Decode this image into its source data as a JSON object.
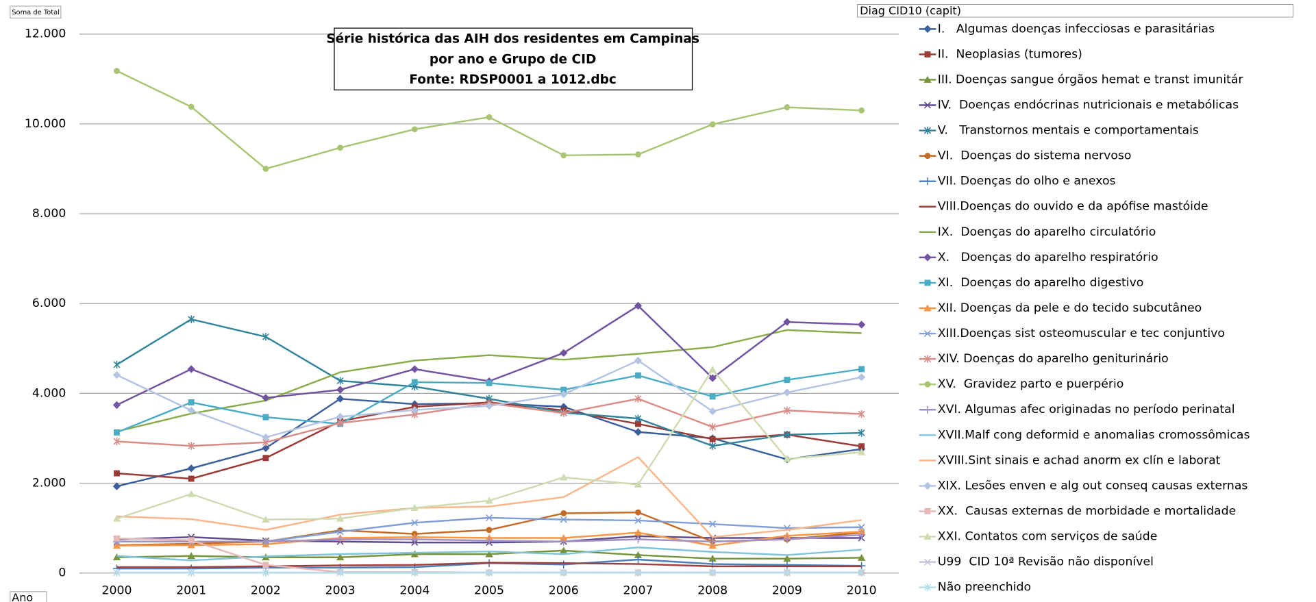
{
  "chart_data": {
    "type": "line",
    "title": [
      "Série histórica das AIH dos residentes em Campinas",
      "por ano e Grupo de CID",
      "Fonte: RDSP0001 a 1012.dbc"
    ],
    "value_field": "Soma de Total",
    "legend_title": "Diag CID10 (capit)",
    "x_field": "Ano",
    "legend": "right",
    "grid": true,
    "categories": [
      "2000",
      "2001",
      "2002",
      "2003",
      "2004",
      "2005",
      "2006",
      "2007",
      "2008",
      "2009",
      "2010"
    ],
    "ylim": [
      0,
      12000
    ],
    "yticks": [
      0,
      {
        "value": 2000,
        "label": "2.000"
      },
      {
        "value": 4000,
        "label": "4.000"
      },
      {
        "value": 6000,
        "label": "6.000"
      },
      {
        "value": 8000,
        "label": "8.000"
      },
      {
        "value": 10000,
        "label": "10.000"
      },
      {
        "value": 12000,
        "label": "12.000"
      }
    ],
    "series": [
      {
        "name": "I.   Algumas doenças infecciosas e parasitárias",
        "color": "#3a5f9a",
        "marker": "diamond",
        "values": [
          1930,
          2330,
          2780,
          3880,
          3760,
          3780,
          3700,
          3140,
          3000,
          2530,
          2760
        ]
      },
      {
        "name": "II.  Neoplasias (tumores)",
        "color": "#9c3a35",
        "marker": "square",
        "values": [
          2220,
          2100,
          2560,
          3380,
          3700,
          3800,
          3620,
          3320,
          2980,
          3080,
          2820
        ]
      },
      {
        "name": "III. Doenças sangue órgãos hemat e transt imunitár",
        "color": "#77933c",
        "marker": "triangle",
        "values": [
          350,
          380,
          350,
          350,
          420,
          420,
          500,
          400,
          320,
          320,
          340
        ]
      },
      {
        "name": "IV.  Doenças endócrinas nutricionais e metabólicas",
        "color": "#5f4b8b",
        "marker": "x",
        "values": [
          750,
          800,
          720,
          700,
          680,
          680,
          700,
          820,
          780,
          780,
          780
        ]
      },
      {
        "name": "V.   Transtornos mentais e comportamentais",
        "color": "#31849b",
        "marker": "asterisk",
        "values": [
          4640,
          5650,
          5260,
          4280,
          4150,
          3880,
          3570,
          3440,
          2830,
          3080,
          3120
        ]
      },
      {
        "name": "VI.  Doenças do sistema nervoso",
        "color": "#c46b27",
        "marker": "circle",
        "values": [
          620,
          650,
          700,
          950,
          870,
          960,
          1330,
          1350,
          700,
          750,
          900
        ]
      },
      {
        "name": "VII. Doenças do olho e anexos",
        "color": "#4a7ebb",
        "marker": "plus",
        "values": [
          100,
          100,
          120,
          120,
          130,
          220,
          190,
          300,
          200,
          180,
          160
        ]
      },
      {
        "name": "VIII.Doenças do ouvido e da apófise mastóide",
        "color": "#a0403d",
        "marker": "none",
        "values": [
          130,
          130,
          150,
          170,
          180,
          230,
          220,
          200,
          150,
          150,
          150
        ]
      },
      {
        "name": "IX.  Doenças do aparelho circulatório",
        "color": "#8aac4a",
        "marker": "none",
        "values": [
          3150,
          3550,
          3840,
          4470,
          4730,
          4850,
          4750,
          4880,
          5030,
          5410,
          5340
        ]
      },
      {
        "name": "X.   Doenças do aparelho respiratório",
        "color": "#7153a0",
        "marker": "diamond",
        "values": [
          3740,
          4540,
          3900,
          4080,
          4540,
          4270,
          4900,
          5950,
          4340,
          5590,
          5530
        ]
      },
      {
        "name": "XI.  Doenças do aparelho digestivo",
        "color": "#4bacc6",
        "marker": "square",
        "values": [
          3130,
          3800,
          3470,
          3320,
          4250,
          4230,
          4080,
          4400,
          3930,
          4300,
          4540
        ]
      },
      {
        "name": "XII. Doenças da pele e do tecido subcutâneo",
        "color": "#f79646",
        "marker": "triangle",
        "values": [
          610,
          620,
          640,
          780,
          800,
          780,
          780,
          900,
          610,
          830,
          920
        ]
      },
      {
        "name": "XIII.Doenças sist osteomuscular e tec conjuntivo",
        "color": "#7f9fd6",
        "marker": "x",
        "values": [
          700,
          700,
          700,
          920,
          1120,
          1230,
          1190,
          1170,
          1090,
          1000,
          1020
        ]
      },
      {
        "name": "XIV. Doenças do aparelho geniturinário",
        "color": "#d98c88",
        "marker": "asterisk",
        "values": [
          2930,
          2830,
          2910,
          3340,
          3530,
          3780,
          3560,
          3880,
          3250,
          3620,
          3540
        ]
      },
      {
        "name": "XV.  Gravidez parto e puerpério",
        "color": "#a9c574",
        "marker": "circle",
        "values": [
          11180,
          10380,
          9000,
          9470,
          9880,
          10150,
          9300,
          9320,
          9990,
          10370,
          10300
        ]
      },
      {
        "name": "XVI. Algumas afec originadas no período perinatal",
        "color": "#a190c4",
        "marker": "plus",
        "values": [
          700,
          700,
          700,
          750,
          750,
          720,
          700,
          750,
          700,
          750,
          850
        ]
      },
      {
        "name": "XVII.Malf cong deformid e anomalias cromossômicas",
        "color": "#7fc4da",
        "marker": "none",
        "values": [
          380,
          280,
          370,
          420,
          450,
          480,
          420,
          570,
          470,
          400,
          520
        ]
      },
      {
        "name": "XVIII.Sint sinais e achad anorm ex clín e laborat",
        "color": "#fab58a",
        "marker": "none",
        "values": [
          1260,
          1200,
          960,
          1300,
          1450,
          1480,
          1690,
          2580,
          800,
          960,
          1180
        ]
      },
      {
        "name": "XIX. Lesões enven e alg out conseq causas externas",
        "color": "#b3c4e3",
        "marker": "diamond",
        "values": [
          4410,
          3620,
          3020,
          3480,
          3630,
          3720,
          3980,
          4730,
          3600,
          4020,
          4360
        ]
      },
      {
        "name": "XX.  Causas externas de morbidade e mortalidade",
        "color": "#e6b8b7",
        "marker": "square",
        "values": [
          770,
          730,
          180,
          20,
          20,
          10,
          10,
          10,
          10,
          10,
          10
        ]
      },
      {
        "name": "XXI. Contatos com serviços de saúde",
        "color": "#cfdcb2",
        "marker": "triangle",
        "values": [
          1210,
          1760,
          1190,
          1210,
          1450,
          1610,
          2130,
          1970,
          4530,
          2540,
          2690
        ]
      },
      {
        "name": "U99  CID 10ª Revisão não disponível",
        "color": "#c7c0de",
        "marker": "x",
        "values": [
          10,
          10,
          10,
          10,
          10,
          10,
          10,
          10,
          10,
          10,
          10
        ]
      },
      {
        "name": "Não preenchido",
        "color": "#b7dee8",
        "marker": "asterisk",
        "values": [
          5,
          5,
          5,
          5,
          5,
          5,
          5,
          5,
          5,
          5,
          5
        ]
      }
    ]
  }
}
